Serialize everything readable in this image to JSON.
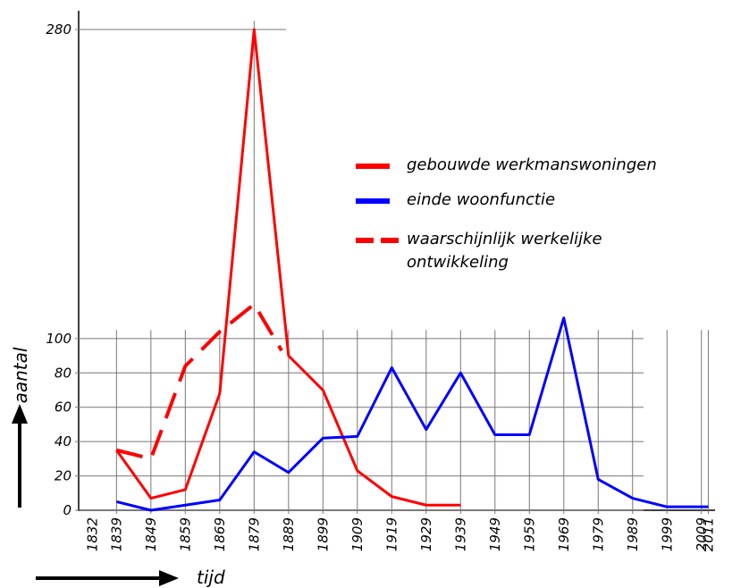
{
  "chart_data": {
    "type": "line",
    "ylabel": "aantal",
    "xlabel": "tijd",
    "xlim": [
      1828,
      2014
    ],
    "ylim": [
      0,
      290
    ],
    "xticks": [
      1832,
      1839,
      1849,
      1859,
      1869,
      1879,
      1889,
      1899,
      1909,
      1919,
      1929,
      1939,
      1949,
      1959,
      1969,
      1979,
      1989,
      1999,
      2009,
      2011
    ],
    "yticks": [
      0,
      20,
      40,
      60,
      80,
      100,
      280
    ],
    "grid": true,
    "series": [
      {
        "name": "gebouwde werkmanswoningen",
        "color": "#ff0000",
        "dashed": false,
        "x": [
          1839,
          1849,
          1859,
          1869,
          1879,
          1889,
          1899,
          1909,
          1919,
          1929,
          1939
        ],
        "values": [
          35,
          7,
          12,
          68,
          280,
          90,
          70,
          23,
          8,
          3,
          3
        ]
      },
      {
        "name": "einde woonfunctie",
        "color": "#0000ff",
        "dashed": false,
        "x": [
          1839,
          1849,
          1859,
          1869,
          1879,
          1889,
          1899,
          1909,
          1919,
          1929,
          1939,
          1949,
          1959,
          1969,
          1979,
          1989,
          1999,
          2009,
          2011
        ],
        "values": [
          5,
          0,
          3,
          6,
          34,
          22,
          42,
          43,
          83,
          47,
          80,
          44,
          44,
          112,
          18,
          7,
          2,
          2,
          2
        ]
      },
      {
        "name": "waarschijnlijk werkelijke ontwikkeling",
        "color": "#ff0000",
        "dashed": true,
        "x": [
          1839,
          1849,
          1859,
          1869,
          1879,
          1887
        ],
        "values": [
          35,
          30,
          84,
          104,
          120,
          93
        ]
      }
    ]
  }
}
